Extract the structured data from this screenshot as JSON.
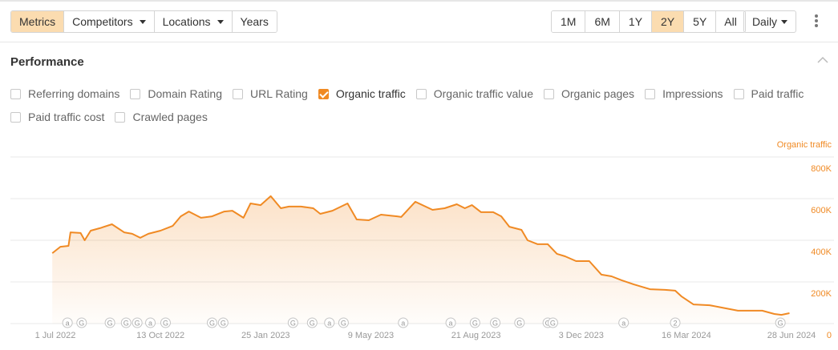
{
  "toolbar": {
    "left_tabs": [
      {
        "label": "Metrics",
        "selected": true,
        "dropdown": false
      },
      {
        "label": "Competitors",
        "selected": false,
        "dropdown": true
      },
      {
        "label": "Locations",
        "selected": false,
        "dropdown": true
      },
      {
        "label": "Years",
        "selected": false,
        "dropdown": false
      }
    ],
    "ranges": [
      {
        "label": "1M",
        "selected": false
      },
      {
        "label": "6M",
        "selected": false
      },
      {
        "label": "1Y",
        "selected": false
      },
      {
        "label": "2Y",
        "selected": true
      },
      {
        "label": "5Y",
        "selected": false
      },
      {
        "label": "All",
        "selected": false
      }
    ],
    "interval": "Daily",
    "more_icon": "vertical-dots-icon"
  },
  "section": {
    "title": "Performance",
    "collapse_icon": "chevron-up-icon"
  },
  "metrics": [
    [
      {
        "label": "Referring domains",
        "checked": false
      },
      {
        "label": "Domain Rating",
        "checked": false
      },
      {
        "label": "URL Rating",
        "checked": false
      },
      {
        "label": "Organic traffic",
        "checked": true
      },
      {
        "label": "Organic traffic value",
        "checked": false
      },
      {
        "label": "Organic pages",
        "checked": false
      },
      {
        "label": "Impressions",
        "checked": false
      },
      {
        "label": "Paid traffic",
        "checked": false
      }
    ],
    [
      {
        "label": "Paid traffic cost",
        "checked": false
      },
      {
        "label": "Crawled pages",
        "checked": false
      }
    ]
  ],
  "colors": {
    "accent": "#f08a24",
    "selected_bg": "#fbdcb0",
    "grid": "#e8e8e8",
    "axis_text": "#999999"
  },
  "chart_data": {
    "type": "area",
    "series": [
      {
        "name": "Organic traffic",
        "color": "#f08a24"
      }
    ],
    "ylabel": "Organic traffic",
    "ylim": [
      0,
      800000
    ],
    "yticks": [
      {
        "v": 0,
        "label": "0"
      },
      {
        "v": 200000,
        "label": "200K"
      },
      {
        "v": 400000,
        "label": "400K"
      },
      {
        "v": 600000,
        "label": "600K"
      },
      {
        "v": 800000,
        "label": "800K"
      }
    ],
    "xticks": [
      {
        "date": "2022-07-01",
        "label": "1 Jul 2022"
      },
      {
        "date": "2022-10-13",
        "label": "13 Oct 2022"
      },
      {
        "date": "2023-01-25",
        "label": "25 Jan 2023"
      },
      {
        "date": "2023-05-09",
        "label": "9 May 2023"
      },
      {
        "date": "2023-08-21",
        "label": "21 Aug 2023"
      },
      {
        "date": "2023-12-03",
        "label": "3 Dec 2023"
      },
      {
        "date": "2024-03-16",
        "label": "16 Mar 2024"
      },
      {
        "date": "2024-06-28",
        "label": "28 Jun 2024"
      }
    ],
    "grid": true,
    "points": [
      [
        "2022-06-28",
        338000
      ],
      [
        "2022-07-06",
        369000
      ],
      [
        "2022-07-14",
        373000
      ],
      [
        "2022-07-16",
        438000
      ],
      [
        "2022-07-26",
        435000
      ],
      [
        "2022-07-30",
        400000
      ],
      [
        "2022-08-05",
        446000
      ],
      [
        "2022-08-14",
        458000
      ],
      [
        "2022-08-26",
        477000
      ],
      [
        "2022-09-07",
        438000
      ],
      [
        "2022-09-15",
        431000
      ],
      [
        "2022-09-23",
        412000
      ],
      [
        "2022-10-01",
        431000
      ],
      [
        "2022-10-13",
        446000
      ],
      [
        "2022-10-25",
        469000
      ],
      [
        "2022-11-02",
        515000
      ],
      [
        "2022-11-10",
        538000
      ],
      [
        "2022-11-22",
        508000
      ],
      [
        "2022-12-03",
        515000
      ],
      [
        "2022-12-15",
        538000
      ],
      [
        "2022-12-23",
        542000
      ],
      [
        "2023-01-03",
        508000
      ],
      [
        "2023-01-10",
        577000
      ],
      [
        "2023-01-20",
        569000
      ],
      [
        "2023-01-30",
        612000
      ],
      [
        "2023-02-09",
        554000
      ],
      [
        "2023-02-17",
        562000
      ],
      [
        "2023-03-01",
        562000
      ],
      [
        "2023-03-13",
        554000
      ],
      [
        "2023-03-20",
        527000
      ],
      [
        "2023-04-01",
        542000
      ],
      [
        "2023-04-16",
        577000
      ],
      [
        "2023-04-25",
        500000
      ],
      [
        "2023-05-07",
        496000
      ],
      [
        "2023-05-19",
        523000
      ],
      [
        "2023-06-04",
        515000
      ],
      [
        "2023-06-08",
        512000
      ],
      [
        "2023-06-22",
        585000
      ],
      [
        "2023-07-09",
        546000
      ],
      [
        "2023-07-21",
        554000
      ],
      [
        "2023-08-02",
        573000
      ],
      [
        "2023-08-10",
        554000
      ],
      [
        "2023-08-17",
        569000
      ],
      [
        "2023-08-26",
        535000
      ],
      [
        "2023-09-07",
        535000
      ],
      [
        "2023-09-15",
        515000
      ],
      [
        "2023-09-23",
        465000
      ],
      [
        "2023-10-05",
        450000
      ],
      [
        "2023-10-11",
        400000
      ],
      [
        "2023-10-21",
        381000
      ],
      [
        "2023-10-31",
        381000
      ],
      [
        "2023-11-09",
        335000
      ],
      [
        "2023-11-17",
        323000
      ],
      [
        "2023-11-28",
        300000
      ],
      [
        "2023-12-11",
        300000
      ],
      [
        "2023-12-23",
        235000
      ],
      [
        "2024-01-02",
        227000
      ],
      [
        "2024-01-12",
        208000
      ],
      [
        "2024-01-24",
        188000
      ],
      [
        "2024-02-09",
        165000
      ],
      [
        "2024-02-24",
        162000
      ],
      [
        "2024-03-05",
        158000
      ],
      [
        "2024-03-11",
        131000
      ],
      [
        "2024-03-23",
        92000
      ],
      [
        "2024-04-08",
        88000
      ],
      [
        "2024-04-20",
        77000
      ],
      [
        "2024-05-06",
        62000
      ],
      [
        "2024-05-22",
        62000
      ],
      [
        "2024-05-30",
        62000
      ],
      [
        "2024-06-11",
        46000
      ],
      [
        "2024-06-18",
        42000
      ],
      [
        "2024-06-26",
        50000
      ]
    ],
    "annotations": [
      {
        "date": "2022-07-13",
        "mark": "a"
      },
      {
        "date": "2022-07-27",
        "mark": "G"
      },
      {
        "date": "2022-08-24",
        "mark": "G"
      },
      {
        "date": "2022-09-09",
        "mark": "G"
      },
      {
        "date": "2022-09-20",
        "mark": "G"
      },
      {
        "date": "2022-10-03",
        "mark": "a"
      },
      {
        "date": "2022-10-18",
        "mark": "G"
      },
      {
        "date": "2022-12-03",
        "mark": "G"
      },
      {
        "date": "2022-12-14",
        "mark": "G"
      },
      {
        "date": "2023-02-21",
        "mark": "G"
      },
      {
        "date": "2023-03-12",
        "mark": "G"
      },
      {
        "date": "2023-03-29",
        "mark": "a"
      },
      {
        "date": "2023-04-12",
        "mark": "G"
      },
      {
        "date": "2023-06-10",
        "mark": "a"
      },
      {
        "date": "2023-07-27",
        "mark": "a"
      },
      {
        "date": "2023-08-20",
        "mark": "G"
      },
      {
        "date": "2023-09-09",
        "mark": "G"
      },
      {
        "date": "2023-10-03",
        "mark": "G"
      },
      {
        "date": "2023-10-31",
        "mark": "G"
      },
      {
        "date": "2023-11-05",
        "mark": "G"
      },
      {
        "date": "2024-01-14",
        "mark": "a"
      },
      {
        "date": "2024-03-05",
        "mark": "2"
      },
      {
        "date": "2024-06-17",
        "mark": "G"
      }
    ]
  }
}
